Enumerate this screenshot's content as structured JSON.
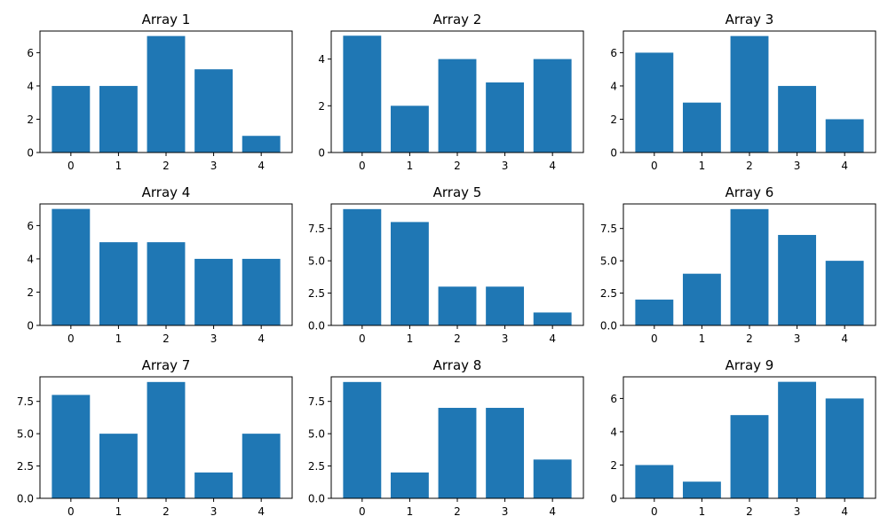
{
  "chart_data": [
    {
      "type": "bar",
      "title": "Array 1",
      "categories": [
        "0",
        "1",
        "2",
        "3",
        "4"
      ],
      "values": [
        4,
        4,
        7,
        5,
        1
      ],
      "ylim": [
        0,
        7.3
      ],
      "yticks": [
        0,
        2,
        4,
        6
      ],
      "ytick_labels": [
        "0",
        "2",
        "4",
        "6"
      ],
      "color": "#1f77b4"
    },
    {
      "type": "bar",
      "title": "Array 2",
      "categories": [
        "0",
        "1",
        "2",
        "3",
        "4"
      ],
      "values": [
        5,
        2,
        4,
        3,
        4
      ],
      "ylim": [
        0,
        5.2
      ],
      "yticks": [
        0,
        2,
        4
      ],
      "ytick_labels": [
        "0",
        "2",
        "4"
      ],
      "color": "#1f77b4"
    },
    {
      "type": "bar",
      "title": "Array 3",
      "categories": [
        "0",
        "1",
        "2",
        "3",
        "4"
      ],
      "values": [
        6,
        3,
        7,
        4,
        2
      ],
      "ylim": [
        0,
        7.3
      ],
      "yticks": [
        0,
        2,
        4,
        6
      ],
      "ytick_labels": [
        "0",
        "2",
        "4",
        "6"
      ],
      "color": "#1f77b4"
    },
    {
      "type": "bar",
      "title": "Array 4",
      "categories": [
        "0",
        "1",
        "2",
        "3",
        "4"
      ],
      "values": [
        7,
        5,
        5,
        4,
        4
      ],
      "ylim": [
        0,
        7.3
      ],
      "yticks": [
        0,
        2,
        4,
        6
      ],
      "ytick_labels": [
        "0",
        "2",
        "4",
        "6"
      ],
      "color": "#1f77b4"
    },
    {
      "type": "bar",
      "title": "Array 5",
      "categories": [
        "0",
        "1",
        "2",
        "3",
        "4"
      ],
      "values": [
        9,
        8,
        3,
        3,
        1
      ],
      "ylim": [
        0,
        9.4
      ],
      "yticks": [
        0,
        2.5,
        5,
        7.5
      ],
      "ytick_labels": [
        "0.0",
        "2.5",
        "5.0",
        "7.5"
      ],
      "color": "#1f77b4"
    },
    {
      "type": "bar",
      "title": "Array 6",
      "categories": [
        "0",
        "1",
        "2",
        "3",
        "4"
      ],
      "values": [
        2,
        4,
        9,
        7,
        5
      ],
      "ylim": [
        0,
        9.4
      ],
      "yticks": [
        0,
        2.5,
        5,
        7.5
      ],
      "ytick_labels": [
        "0.0",
        "2.5",
        "5.0",
        "7.5"
      ],
      "color": "#1f77b4"
    },
    {
      "type": "bar",
      "title": "Array 7",
      "categories": [
        "0",
        "1",
        "2",
        "3",
        "4"
      ],
      "values": [
        8,
        5,
        9,
        2,
        5
      ],
      "ylim": [
        0,
        9.4
      ],
      "yticks": [
        0,
        2.5,
        5,
        7.5
      ],
      "ytick_labels": [
        "0.0",
        "2.5",
        "5.0",
        "7.5"
      ],
      "color": "#1f77b4"
    },
    {
      "type": "bar",
      "title": "Array 8",
      "categories": [
        "0",
        "1",
        "2",
        "3",
        "4"
      ],
      "values": [
        9,
        2,
        7,
        7,
        3
      ],
      "ylim": [
        0,
        9.4
      ],
      "yticks": [
        0,
        2.5,
        5,
        7.5
      ],
      "ytick_labels": [
        "0.0",
        "2.5",
        "5.0",
        "7.5"
      ],
      "color": "#1f77b4"
    },
    {
      "type": "bar",
      "title": "Array 9",
      "categories": [
        "0",
        "1",
        "2",
        "3",
        "4"
      ],
      "values": [
        2,
        1,
        5,
        7,
        6
      ],
      "ylim": [
        0,
        7.3
      ],
      "yticks": [
        0,
        2,
        4,
        6
      ],
      "ytick_labels": [
        "0",
        "2",
        "4",
        "6"
      ],
      "color": "#1f77b4"
    }
  ]
}
